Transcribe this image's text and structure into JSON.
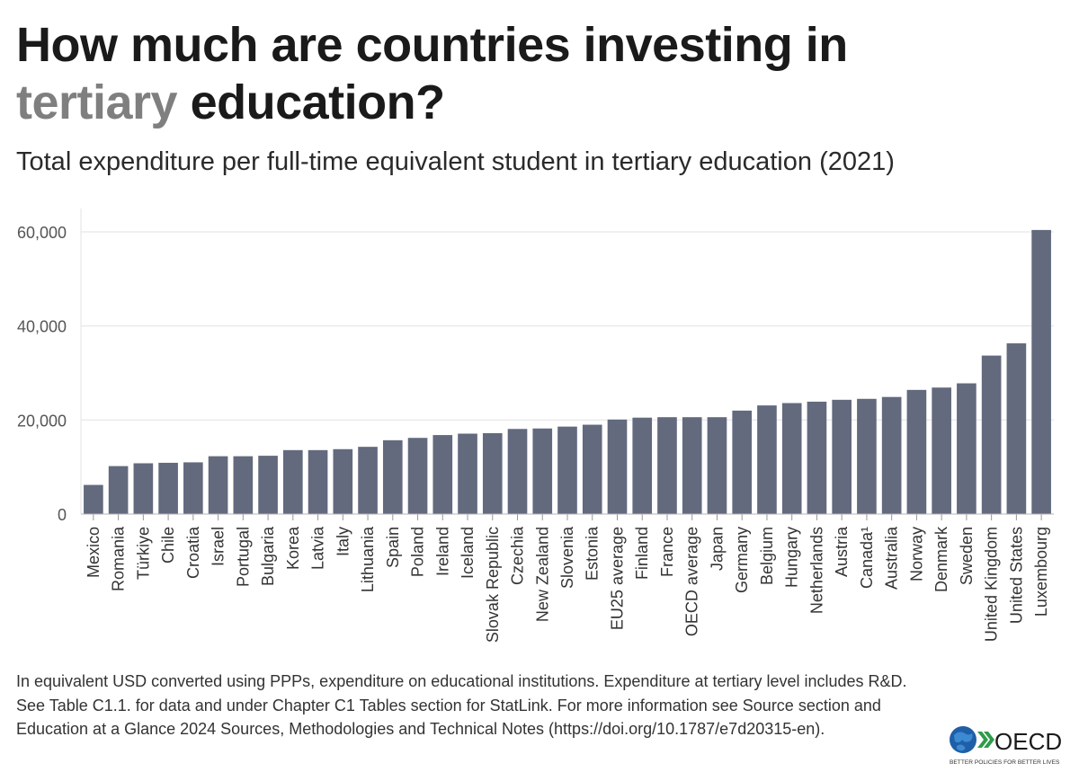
{
  "header": {
    "title_part1": "How much are countries investing in",
    "title_highlight": "tertiary",
    "title_part2": "education?",
    "subtitle": "Total expenditure per full-time equivalent student in tertiary education (2021)"
  },
  "chart_data": {
    "type": "bar",
    "title": "How much are countries investing in tertiary education?",
    "subtitle": "Total expenditure per full-time equivalent student in tertiary education (2021)",
    "xlabel": "",
    "ylabel": "",
    "ylim": [
      0,
      60000
    ],
    "yticks": [
      0,
      20000,
      40000,
      60000
    ],
    "ytick_labels": [
      "0",
      "20,000",
      "40,000",
      "60,000"
    ],
    "grid": true,
    "bar_color": "#636a7e",
    "categories": [
      "Mexico",
      "Romania",
      "Türkiye",
      "Chile",
      "Croatia",
      "Israel",
      "Portugal",
      "Bulgaria",
      "Korea",
      "Latvia",
      "Italy",
      "Lithuania",
      "Spain",
      "Poland",
      "Ireland",
      "Iceland",
      "Slovak Republic",
      "Czechia",
      "New Zealand",
      "Slovenia",
      "Estonia",
      "EU25 average",
      "Finland",
      "France",
      "OECD average",
      "Japan",
      "Germany",
      "Belgium",
      "Hungary",
      "Netherlands",
      "Austria",
      "Canada¹",
      "Australia",
      "Norway",
      "Denmark",
      "Sweden",
      "United Kingdom",
      "United States",
      "Luxembourg"
    ],
    "values": [
      6200,
      10200,
      10800,
      10900,
      11000,
      12300,
      12300,
      12400,
      13600,
      13600,
      13800,
      14300,
      15700,
      16200,
      16800,
      17100,
      17200,
      18100,
      18200,
      18600,
      19000,
      20100,
      20500,
      20600,
      20600,
      20600,
      22000,
      23100,
      23600,
      23900,
      24300,
      24500,
      24900,
      26400,
      26900,
      27800,
      33700,
      36300,
      60400
    ]
  },
  "footnote": "In equivalent USD converted using PPPs, expenditure on educational institutions. Expenditure at tertiary level includes R&D. See Table C1.1. for data and under Chapter C1 Tables section for StatLink. For more information see Source section and Education at a Glance 2024 Sources, Methodologies and Technical Notes (https://doi.org/10.1787/e7d20315-en).",
  "logo": {
    "name": "OECD",
    "tagline": "BETTER POLICIES FOR BETTER LIVES",
    "icon": "globe-icon",
    "globe_color": "#1f5fa8",
    "chevron_color": "#2e9b4a"
  }
}
